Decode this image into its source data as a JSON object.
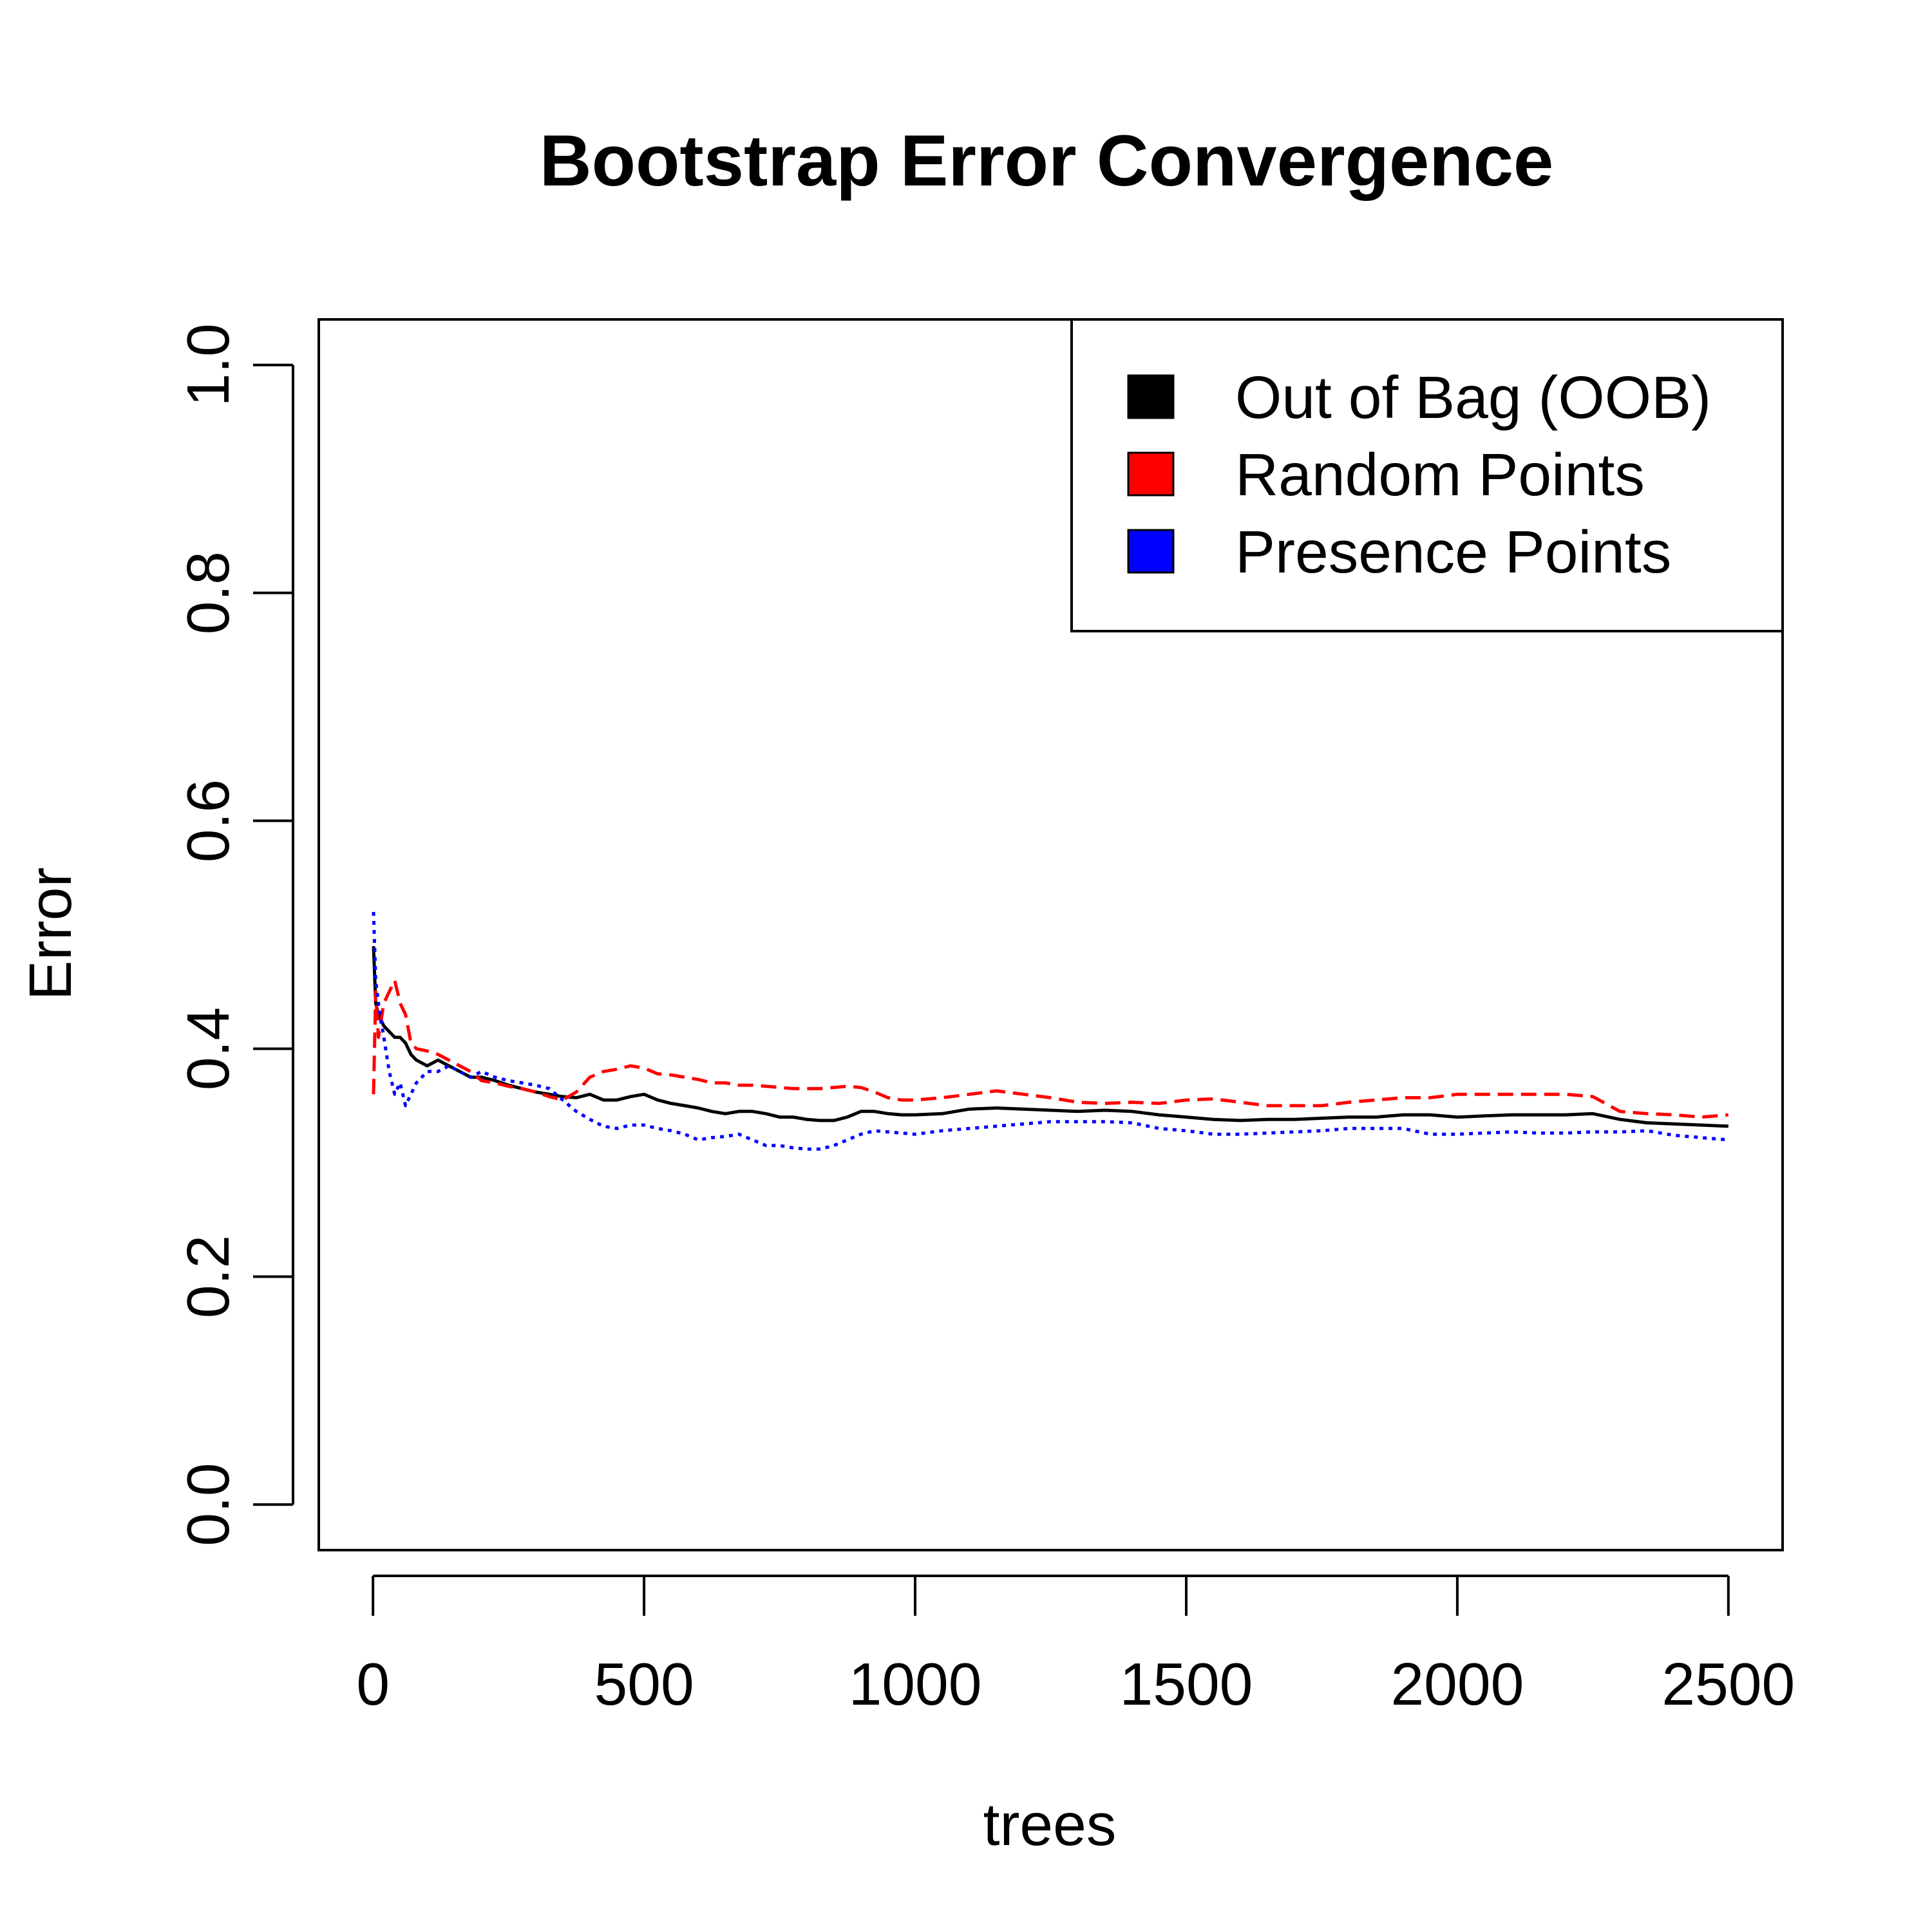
{
  "chart_data": {
    "type": "line",
    "title": "Bootstrap Error Convergence",
    "xlabel": "trees",
    "ylabel": "Error",
    "xlim": [
      -100,
      2600
    ],
    "ylim": [
      -0.04,
      1.04
    ],
    "x_ticks": [
      0,
      500,
      1000,
      1500,
      2000,
      2500
    ],
    "x_tick_labels": [
      "0",
      "500",
      "1000",
      "1500",
      "2000",
      "2500"
    ],
    "y_ticks": [
      0.0,
      0.2,
      0.4,
      0.6,
      0.8,
      1.0
    ],
    "y_tick_labels": [
      "0.0",
      "0.2",
      "0.4",
      "0.6",
      "0.8",
      "1.0"
    ],
    "grid": false,
    "legend_position": "top-right",
    "series": [
      {
        "name": "Out of Bag (OOB)",
        "color": "#000000",
        "line_style": "solid",
        "points": [
          [
            1,
            0.49
          ],
          [
            5,
            0.44
          ],
          [
            10,
            0.43
          ],
          [
            20,
            0.42
          ],
          [
            30,
            0.415
          ],
          [
            40,
            0.41
          ],
          [
            50,
            0.41
          ],
          [
            60,
            0.405
          ],
          [
            70,
            0.395
          ],
          [
            80,
            0.39
          ],
          [
            100,
            0.385
          ],
          [
            120,
            0.39
          ],
          [
            140,
            0.385
          ],
          [
            160,
            0.38
          ],
          [
            180,
            0.375
          ],
          [
            200,
            0.375
          ],
          [
            225,
            0.372
          ],
          [
            250,
            0.368
          ],
          [
            275,
            0.365
          ],
          [
            300,
            0.362
          ],
          [
            325,
            0.36
          ],
          [
            350,
            0.358
          ],
          [
            375,
            0.357
          ],
          [
            400,
            0.36
          ],
          [
            425,
            0.355
          ],
          [
            450,
            0.355
          ],
          [
            475,
            0.358
          ],
          [
            500,
            0.36
          ],
          [
            525,
            0.355
          ],
          [
            550,
            0.352
          ],
          [
            575,
            0.35
          ],
          [
            600,
            0.348
          ],
          [
            625,
            0.345
          ],
          [
            650,
            0.343
          ],
          [
            675,
            0.345
          ],
          [
            700,
            0.345
          ],
          [
            725,
            0.343
          ],
          [
            750,
            0.34
          ],
          [
            775,
            0.34
          ],
          [
            800,
            0.338
          ],
          [
            825,
            0.337
          ],
          [
            850,
            0.337
          ],
          [
            875,
            0.34
          ],
          [
            900,
            0.345
          ],
          [
            925,
            0.345
          ],
          [
            950,
            0.343
          ],
          [
            975,
            0.342
          ],
          [
            1000,
            0.342
          ],
          [
            1050,
            0.343
          ],
          [
            1100,
            0.347
          ],
          [
            1150,
            0.348
          ],
          [
            1200,
            0.347
          ],
          [
            1250,
            0.346
          ],
          [
            1300,
            0.345
          ],
          [
            1350,
            0.346
          ],
          [
            1400,
            0.345
          ],
          [
            1450,
            0.342
          ],
          [
            1500,
            0.34
          ],
          [
            1550,
            0.338
          ],
          [
            1600,
            0.337
          ],
          [
            1650,
            0.338
          ],
          [
            1700,
            0.338
          ],
          [
            1750,
            0.339
          ],
          [
            1800,
            0.34
          ],
          [
            1850,
            0.34
          ],
          [
            1900,
            0.342
          ],
          [
            1950,
            0.342
          ],
          [
            2000,
            0.34
          ],
          [
            2050,
            0.341
          ],
          [
            2100,
            0.342
          ],
          [
            2150,
            0.342
          ],
          [
            2200,
            0.342
          ],
          [
            2250,
            0.343
          ],
          [
            2300,
            0.338
          ],
          [
            2350,
            0.335
          ],
          [
            2400,
            0.334
          ],
          [
            2450,
            0.333
          ],
          [
            2500,
            0.332
          ]
        ]
      },
      {
        "name": "Random Points",
        "color": "#ff0000",
        "line_style": "dashed",
        "points": [
          [
            1,
            0.36
          ],
          [
            5,
            0.45
          ],
          [
            10,
            0.41
          ],
          [
            20,
            0.44
          ],
          [
            30,
            0.45
          ],
          [
            40,
            0.46
          ],
          [
            50,
            0.44
          ],
          [
            60,
            0.43
          ],
          [
            70,
            0.405
          ],
          [
            80,
            0.4
          ],
          [
            100,
            0.398
          ],
          [
            120,
            0.395
          ],
          [
            140,
            0.39
          ],
          [
            160,
            0.385
          ],
          [
            180,
            0.38
          ],
          [
            200,
            0.372
          ],
          [
            225,
            0.37
          ],
          [
            250,
            0.367
          ],
          [
            275,
            0.365
          ],
          [
            300,
            0.362
          ],
          [
            325,
            0.358
          ],
          [
            350,
            0.355
          ],
          [
            375,
            0.362
          ],
          [
            400,
            0.375
          ],
          [
            425,
            0.38
          ],
          [
            450,
            0.382
          ],
          [
            475,
            0.385
          ],
          [
            500,
            0.383
          ],
          [
            525,
            0.378
          ],
          [
            550,
            0.377
          ],
          [
            575,
            0.375
          ],
          [
            600,
            0.373
          ],
          [
            625,
            0.37
          ],
          [
            650,
            0.37
          ],
          [
            675,
            0.368
          ],
          [
            700,
            0.368
          ],
          [
            725,
            0.367
          ],
          [
            750,
            0.366
          ],
          [
            775,
            0.365
          ],
          [
            800,
            0.365
          ],
          [
            825,
            0.365
          ],
          [
            850,
            0.366
          ],
          [
            875,
            0.367
          ],
          [
            900,
            0.366
          ],
          [
            925,
            0.362
          ],
          [
            950,
            0.357
          ],
          [
            975,
            0.355
          ],
          [
            1000,
            0.355
          ],
          [
            1050,
            0.357
          ],
          [
            1100,
            0.36
          ],
          [
            1150,
            0.363
          ],
          [
            1200,
            0.36
          ],
          [
            1250,
            0.357
          ],
          [
            1300,
            0.353
          ],
          [
            1350,
            0.352
          ],
          [
            1400,
            0.353
          ],
          [
            1450,
            0.352
          ],
          [
            1500,
            0.355
          ],
          [
            1550,
            0.356
          ],
          [
            1600,
            0.353
          ],
          [
            1650,
            0.35
          ],
          [
            1700,
            0.35
          ],
          [
            1750,
            0.35
          ],
          [
            1800,
            0.353
          ],
          [
            1850,
            0.355
          ],
          [
            1900,
            0.357
          ],
          [
            1950,
            0.357
          ],
          [
            2000,
            0.36
          ],
          [
            2050,
            0.36
          ],
          [
            2100,
            0.36
          ],
          [
            2150,
            0.36
          ],
          [
            2200,
            0.36
          ],
          [
            2250,
            0.358
          ],
          [
            2300,
            0.345
          ],
          [
            2350,
            0.343
          ],
          [
            2400,
            0.342
          ],
          [
            2450,
            0.34
          ],
          [
            2500,
            0.342
          ]
        ]
      },
      {
        "name": "Presence Points",
        "color": "#0000ff",
        "line_style": "dotted",
        "points": [
          [
            1,
            0.52
          ],
          [
            5,
            0.46
          ],
          [
            10,
            0.44
          ],
          [
            20,
            0.41
          ],
          [
            30,
            0.38
          ],
          [
            40,
            0.36
          ],
          [
            50,
            0.37
          ],
          [
            60,
            0.35
          ],
          [
            70,
            0.36
          ],
          [
            80,
            0.37
          ],
          [
            100,
            0.38
          ],
          [
            120,
            0.38
          ],
          [
            140,
            0.385
          ],
          [
            160,
            0.38
          ],
          [
            180,
            0.375
          ],
          [
            200,
            0.38
          ],
          [
            225,
            0.375
          ],
          [
            250,
            0.372
          ],
          [
            275,
            0.37
          ],
          [
            300,
            0.368
          ],
          [
            325,
            0.365
          ],
          [
            350,
            0.355
          ],
          [
            375,
            0.345
          ],
          [
            400,
            0.338
          ],
          [
            425,
            0.332
          ],
          [
            450,
            0.33
          ],
          [
            475,
            0.333
          ],
          [
            500,
            0.333
          ],
          [
            525,
            0.33
          ],
          [
            550,
            0.328
          ],
          [
            575,
            0.325
          ],
          [
            600,
            0.32
          ],
          [
            625,
            0.322
          ],
          [
            650,
            0.323
          ],
          [
            675,
            0.325
          ],
          [
            700,
            0.32
          ],
          [
            725,
            0.315
          ],
          [
            750,
            0.315
          ],
          [
            775,
            0.313
          ],
          [
            800,
            0.312
          ],
          [
            825,
            0.312
          ],
          [
            850,
            0.315
          ],
          [
            875,
            0.32
          ],
          [
            900,
            0.325
          ],
          [
            925,
            0.328
          ],
          [
            950,
            0.327
          ],
          [
            975,
            0.326
          ],
          [
            1000,
            0.325
          ],
          [
            1050,
            0.328
          ],
          [
            1100,
            0.33
          ],
          [
            1150,
            0.332
          ],
          [
            1200,
            0.334
          ],
          [
            1250,
            0.336
          ],
          [
            1300,
            0.336
          ],
          [
            1350,
            0.336
          ],
          [
            1400,
            0.335
          ],
          [
            1450,
            0.33
          ],
          [
            1500,
            0.328
          ],
          [
            1550,
            0.325
          ],
          [
            1600,
            0.325
          ],
          [
            1650,
            0.326
          ],
          [
            1700,
            0.327
          ],
          [
            1750,
            0.328
          ],
          [
            1800,
            0.33
          ],
          [
            1850,
            0.33
          ],
          [
            1900,
            0.33
          ],
          [
            1950,
            0.325
          ],
          [
            2000,
            0.325
          ],
          [
            2050,
            0.326
          ],
          [
            2100,
            0.327
          ],
          [
            2150,
            0.326
          ],
          [
            2200,
            0.326
          ],
          [
            2250,
            0.327
          ],
          [
            2300,
            0.327
          ],
          [
            2350,
            0.328
          ],
          [
            2400,
            0.324
          ],
          [
            2450,
            0.322
          ],
          [
            2500,
            0.32
          ]
        ]
      }
    ]
  }
}
